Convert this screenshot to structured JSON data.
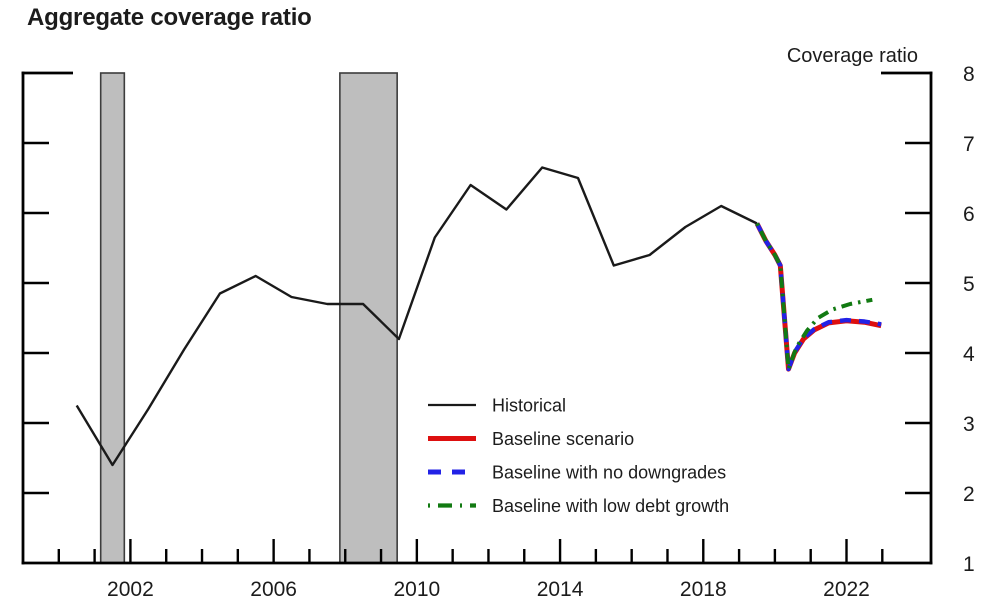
{
  "header": {
    "title": "Aggregate coverage ratio",
    "axis_unit_label": "Coverage ratio"
  },
  "legend": {
    "items": [
      {
        "label": "Historical",
        "color": "#1a1a1a",
        "style": "solid",
        "width": 2.2
      },
      {
        "label": "Baseline scenario",
        "color": "#dd0f0f",
        "style": "solid",
        "width": 5
      },
      {
        "label": "Baseline with no downgrades",
        "color": "#2222e6",
        "style": "dashed",
        "width": 5
      },
      {
        "label": "Baseline with low debt growth",
        "color": "#127a12",
        "style": "dashdot",
        "width": 4.2
      }
    ]
  },
  "colors": {
    "text": "#1c1c1c",
    "axis": "#000000",
    "recession_band_fill": "#bebebe",
    "recession_band_border": "#3d3d3d",
    "historical": "#1a1a1a",
    "baseline": "#dd0f0f",
    "no_downgrades": "#2222e6",
    "low_debt_growth": "#127a12"
  },
  "chart_data": {
    "type": "line",
    "title": "Aggregate coverage ratio",
    "xlabel": "",
    "ylabel": "Coverage ratio",
    "xlim": [
      1999.0,
      2024.36
    ],
    "ylim": [
      1,
      8
    ],
    "grid": false,
    "legend_position": "inside-lower-center",
    "y_ticks": [
      1,
      2,
      3,
      4,
      5,
      6,
      7,
      8
    ],
    "x_minor_ticks_years_range": [
      2000,
      2023
    ],
    "x_labeled_ticks": [
      2002,
      2006,
      2010,
      2014,
      2018,
      2022
    ],
    "recession_bands": [
      {
        "start": 2001.17,
        "end": 2001.83
      },
      {
        "start": 2007.85,
        "end": 2009.45
      }
    ],
    "series": [
      {
        "name": "Historical",
        "color": "#1a1a1a",
        "style": "solid",
        "width": 2.4,
        "x": [
          2000.5,
          2001.5,
          2002.5,
          2003.5,
          2004.5,
          2005.5,
          2006.5,
          2007.5,
          2008.5,
          2009.5,
          2010.5,
          2011.5,
          2012.5,
          2013.5,
          2014.5,
          2015.5,
          2016.5,
          2017.5,
          2018.5,
          2019.5
        ],
        "y": [
          3.25,
          2.4,
          3.2,
          4.05,
          4.85,
          5.1,
          4.8,
          4.7,
          4.7,
          4.2,
          5.65,
          6.4,
          6.05,
          6.65,
          6.5,
          5.25,
          5.4,
          5.8,
          6.1,
          5.85
        ]
      },
      {
        "name": "Baseline scenario",
        "color": "#dd0f0f",
        "style": "solid",
        "width": 5,
        "x": [
          2019.5,
          2019.75,
          2020.0,
          2020.15,
          2020.38,
          2020.55,
          2020.8,
          2021.1,
          2021.5,
          2022.0,
          2022.5,
          2022.97
        ],
        "y": [
          5.85,
          5.6,
          5.4,
          5.25,
          3.77,
          4.0,
          4.2,
          4.33,
          4.43,
          4.46,
          4.44,
          4.39
        ]
      },
      {
        "name": "Baseline with no downgrades",
        "color": "#2222e6",
        "style": "dashed",
        "width": 4.4,
        "x": [
          2019.5,
          2019.75,
          2020.0,
          2020.15,
          2020.38,
          2020.55,
          2020.8,
          2021.1,
          2021.5,
          2022.0,
          2022.5,
          2022.97
        ],
        "y": [
          5.85,
          5.6,
          5.4,
          5.25,
          3.77,
          4.01,
          4.21,
          4.34,
          4.44,
          4.47,
          4.45,
          4.41
        ]
      },
      {
        "name": "Baseline with low debt growth",
        "color": "#127a12",
        "style": "dashdot",
        "width": 4,
        "x": [
          2019.5,
          2019.75,
          2020.0,
          2020.15,
          2020.38,
          2020.6,
          2020.9,
          2021.2,
          2021.6,
          2022.1,
          2022.72
        ],
        "y": [
          5.85,
          5.6,
          5.4,
          5.25,
          3.77,
          4.08,
          4.32,
          4.5,
          4.62,
          4.7,
          4.76
        ]
      }
    ]
  }
}
